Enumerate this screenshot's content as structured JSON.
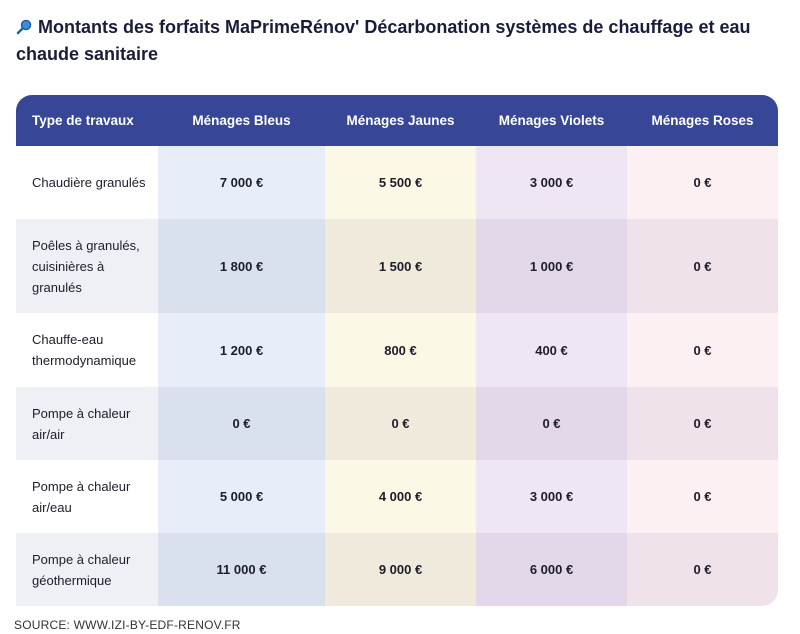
{
  "header": {
    "title": "Montants des forfaits MaPrimeRénov' Décarbonation systèmes de chauffage et eau chaude sanitaire"
  },
  "table": {
    "columns": [
      "Type de travaux",
      "Ménages Bleus",
      "Ménages Jaunes",
      "Ménages Violets",
      "Ménages Roses"
    ],
    "rows": [
      [
        "Chaudière granulés",
        "7 000 €",
        "5 500 €",
        "3 000 €",
        "0 €"
      ],
      [
        "Poêles à granulés, cuisinières à granulés",
        "1 800 €",
        "1 500 €",
        "1 000 €",
        "0 €"
      ],
      [
        "Chauffe-eau thermodynamique",
        "1 200 €",
        "800 €",
        "400 €",
        "0 €"
      ],
      [
        "Pompe à chaleur air/air",
        "0 €",
        "0 €",
        "0 €",
        "0 €"
      ],
      [
        "Pompe à chaleur air/eau",
        "5 000 €",
        "4 000 €",
        "3 000 €",
        "0 €"
      ],
      [
        "Pompe à chaleur géothermique",
        "11 000 €",
        "9 000 €",
        "6 000 €",
        "0 €"
      ]
    ]
  },
  "source": "SOURCE: WWW.IZI-BY-EDF-RENOV.FR"
}
